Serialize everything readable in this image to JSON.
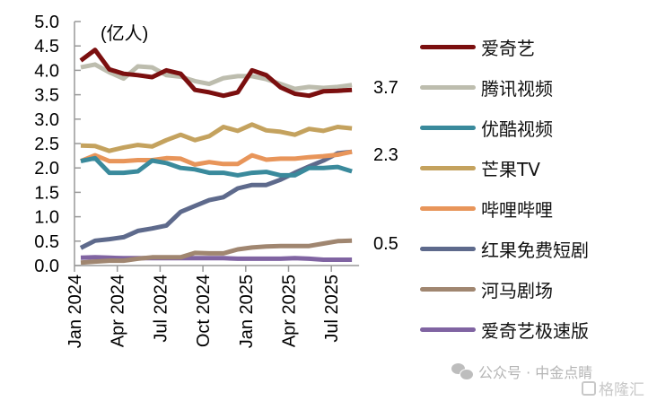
{
  "chart_data": {
    "type": "line",
    "title": "",
    "unit_label": "(亿人)",
    "xlabel": "",
    "ylabel": "",
    "ylim": [
      0,
      5.0
    ],
    "yticks": [
      "0.0",
      "0.5",
      "1.0",
      "1.5",
      "2.0",
      "2.5",
      "3.0",
      "3.5",
      "4.0",
      "4.5",
      "5.0"
    ],
    "ytick_values": [
      0,
      0.5,
      1.0,
      1.5,
      2.0,
      2.5,
      3.0,
      3.5,
      4.0,
      4.5,
      5.0
    ],
    "x": [
      "2024-01",
      "2024-02",
      "2024-03",
      "2024-04",
      "2024-05",
      "2024-06",
      "2024-07",
      "2024-08",
      "2024-09",
      "2024-10",
      "2024-11",
      "2024-12",
      "2025-01",
      "2025-02",
      "2025-03",
      "2025-04",
      "2025-05",
      "2025-06",
      "2025-07",
      "2025-08"
    ],
    "xticks": [
      {
        "label": "Jan 2024",
        "index": 0
      },
      {
        "label": "Apr 2024",
        "index": 3
      },
      {
        "label": "Jul 2024",
        "index": 6
      },
      {
        "label": "Oct 2024",
        "index": 9
      },
      {
        "label": "Jan 2025",
        "index": 12
      },
      {
        "label": "Apr 2025",
        "index": 15
      },
      {
        "label": "Jul 2025",
        "index": 18
      }
    ],
    "grid": false,
    "legend_position": "right",
    "series": [
      {
        "name": "爱奇艺",
        "color": "#7B0F0F",
        "values": [
          4.2,
          4.42,
          4.02,
          3.93,
          3.9,
          3.86,
          4.0,
          3.93,
          3.6,
          3.55,
          3.48,
          3.55,
          4.0,
          3.9,
          3.65,
          3.52,
          3.48,
          3.57,
          3.58,
          3.6
        ]
      },
      {
        "name": "腾讯视频",
        "color": "#BDBDAE",
        "values": [
          4.06,
          4.12,
          3.96,
          3.83,
          4.08,
          4.06,
          3.9,
          3.87,
          3.78,
          3.72,
          3.84,
          3.88,
          3.88,
          3.82,
          3.72,
          3.62,
          3.66,
          3.64,
          3.66,
          3.7
        ]
      },
      {
        "name": "优酷视频",
        "color": "#3A8A9C",
        "values": [
          2.14,
          2.2,
          1.9,
          1.9,
          1.93,
          2.15,
          2.1,
          2.0,
          1.97,
          1.9,
          1.9,
          1.85,
          1.9,
          1.92,
          1.85,
          1.85,
          2.0,
          2.0,
          2.02,
          1.93
        ]
      },
      {
        "name": "芒果TV",
        "color": "#C4A25E",
        "values": [
          2.46,
          2.45,
          2.35,
          2.42,
          2.47,
          2.44,
          2.57,
          2.68,
          2.57,
          2.65,
          2.84,
          2.76,
          2.89,
          2.77,
          2.74,
          2.68,
          2.8,
          2.76,
          2.84,
          2.81
        ]
      },
      {
        "name": "哔哩哔哩",
        "color": "#E8955A",
        "values": [
          2.14,
          2.26,
          2.14,
          2.14,
          2.16,
          2.16,
          2.2,
          2.19,
          2.07,
          2.12,
          2.08,
          2.08,
          2.26,
          2.17,
          2.19,
          2.19,
          2.22,
          2.24,
          2.27,
          2.33
        ]
      },
      {
        "name": "红果免费短剧",
        "color": "#5E6A8C",
        "values": [
          0.36,
          0.51,
          0.54,
          0.58,
          0.71,
          0.76,
          0.82,
          1.1,
          1.22,
          1.34,
          1.4,
          1.58,
          1.65,
          1.65,
          1.76,
          1.9,
          2.03,
          2.15,
          2.3,
          2.33
        ]
      },
      {
        "name": "河马剧场",
        "color": "#A08670",
        "values": [
          0.06,
          0.08,
          0.1,
          0.1,
          0.14,
          0.17,
          0.17,
          0.17,
          0.26,
          0.25,
          0.25,
          0.33,
          0.37,
          0.39,
          0.4,
          0.4,
          0.4,
          0.45,
          0.5,
          0.51
        ]
      },
      {
        "name": "爱奇艺极速版",
        "color": "#8064A2",
        "values": [
          0.16,
          0.17,
          0.16,
          0.15,
          0.15,
          0.15,
          0.15,
          0.15,
          0.15,
          0.15,
          0.15,
          0.14,
          0.14,
          0.14,
          0.14,
          0.15,
          0.14,
          0.12,
          0.12,
          0.12
        ]
      }
    ],
    "annotations": [
      {
        "text": "3.7",
        "series": "腾讯视频",
        "value": 3.7
      },
      {
        "text": "2.3",
        "series": "红果免费短剧",
        "value": 2.3
      },
      {
        "text": "0.5",
        "series": "河马剧场",
        "value": 0.5
      }
    ]
  },
  "watermark": {
    "source_text": "公众号 · 中金点睛",
    "icon": "wechat-icon",
    "brand_text": "格隆汇",
    "brand_icon": "gelonghui-logo-icon"
  }
}
